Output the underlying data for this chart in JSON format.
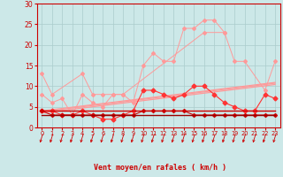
{
  "x": [
    0,
    1,
    2,
    3,
    4,
    5,
    6,
    7,
    8,
    9,
    10,
    11,
    12,
    13,
    14,
    15,
    16,
    17,
    18,
    19,
    20,
    21,
    22,
    23
  ],
  "line_gust_high": [
    13,
    8,
    null,
    null,
    13,
    8,
    8,
    8,
    8,
    null,
    null,
    null,
    null,
    null,
    null,
    null,
    23,
    null,
    23,
    null,
    null,
    null,
    null,
    null
  ],
  "line_gust": [
    8,
    6,
    7,
    3,
    8,
    6,
    5,
    8,
    8,
    6,
    15,
    18,
    16,
    16,
    24,
    24,
    26,
    26,
    23,
    16,
    16,
    null,
    9,
    16
  ],
  "line_mean": [
    4,
    4,
    3,
    3,
    4,
    3,
    2,
    2,
    3,
    4,
    9,
    9,
    8,
    7,
    8,
    10,
    10,
    8,
    6,
    5,
    4,
    4,
    8,
    7
  ],
  "line_reg_upper": [
    4.0,
    4.3,
    4.6,
    4.9,
    5.2,
    5.5,
    5.8,
    6.1,
    6.4,
    6.7,
    7.0,
    7.3,
    7.6,
    7.9,
    8.2,
    8.5,
    8.8,
    9.1,
    9.4,
    9.7,
    10.0,
    10.3,
    10.6,
    10.9
  ],
  "line_reg_lower": [
    3.5,
    3.8,
    4.1,
    4.4,
    4.7,
    5.0,
    5.3,
    5.6,
    5.9,
    6.2,
    6.5,
    6.8,
    7.1,
    7.4,
    7.7,
    8.0,
    8.3,
    8.6,
    8.9,
    9.2,
    9.5,
    9.8,
    10.1,
    10.4
  ],
  "line_reg_mid": [
    3.8,
    4.1,
    4.4,
    4.7,
    5.0,
    5.3,
    5.6,
    5.9,
    6.2,
    6.5,
    6.8,
    7.1,
    7.4,
    7.7,
    8.0,
    8.3,
    8.6,
    8.9,
    9.2,
    9.5,
    9.8,
    10.1,
    10.4,
    10.7
  ],
  "line_flat_dark": [
    4,
    4,
    4,
    4,
    4,
    4,
    4,
    4,
    4,
    4,
    4,
    4,
    4,
    4,
    4,
    4,
    4,
    4,
    4,
    4,
    4,
    4,
    4,
    4
  ],
  "line_flat_low": [
    3,
    3,
    3,
    3,
    3,
    3,
    3,
    3,
    3,
    3,
    3,
    3,
    3,
    3,
    3,
    3,
    3,
    3,
    3,
    3,
    3,
    3,
    3,
    3
  ],
  "line_mean2": [
    4,
    3,
    3,
    3,
    3,
    3,
    3,
    3,
    3,
    3,
    4,
    4,
    4,
    4,
    4,
    3,
    3,
    3,
    3,
    3,
    3,
    3,
    3,
    3
  ],
  "bg_color": "#cce8e8",
  "grid_color": "#aacccc",
  "color_pink": "#ff9999",
  "color_red": "#ff3333",
  "color_darkred": "#cc0000",
  "color_maroon": "#990000",
  "xlabel": "Vent moyen/en rafales ( km/h )",
  "xlabel_color": "#cc0000",
  "tick_color": "#cc0000",
  "xlim": [
    -0.5,
    23.5
  ],
  "ylim": [
    0,
    30
  ],
  "yticks": [
    0,
    5,
    10,
    15,
    20,
    25,
    30
  ],
  "xticks": [
    0,
    1,
    2,
    3,
    4,
    5,
    6,
    7,
    8,
    9,
    10,
    11,
    12,
    13,
    14,
    15,
    16,
    17,
    18,
    19,
    20,
    21,
    22,
    23
  ]
}
